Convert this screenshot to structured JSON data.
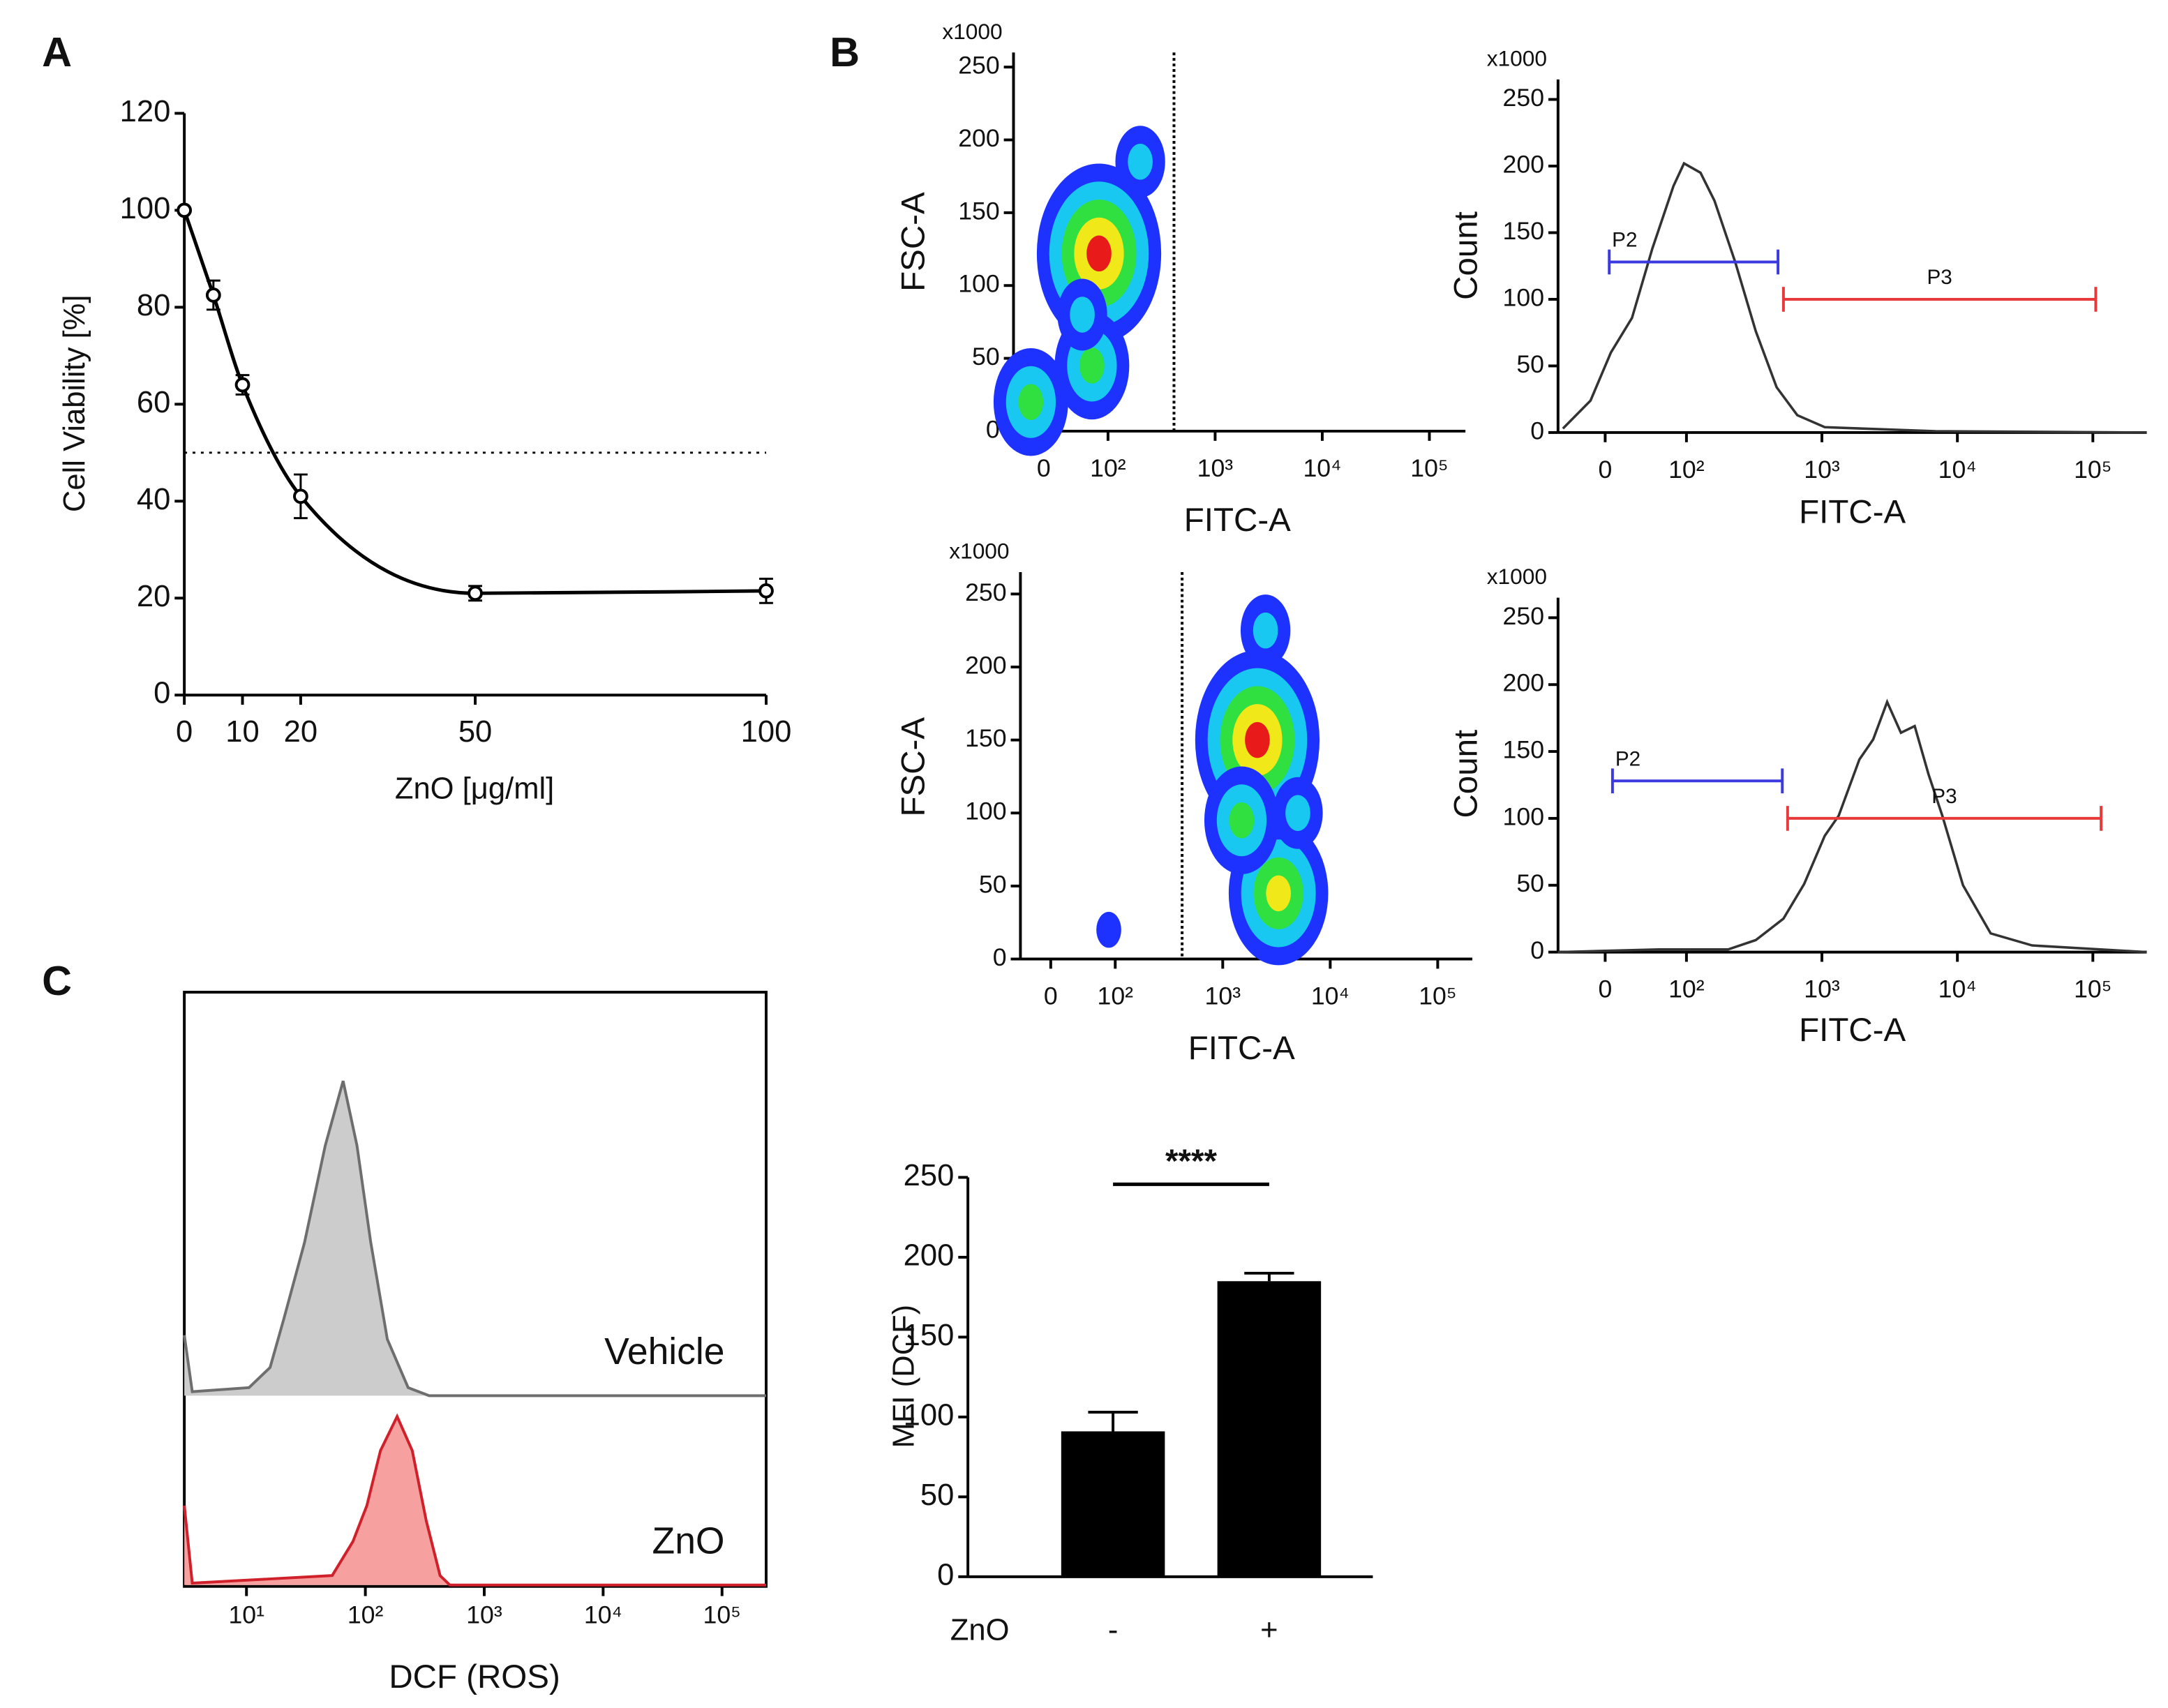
{
  "chart_data": [
    {
      "type": "line",
      "panel": "A",
      "markers": true,
      "color": "#000000",
      "x": [
        0,
        5,
        10,
        20,
        50,
        100
      ],
      "values": [
        100,
        82.5,
        64,
        41,
        21,
        21.5
      ],
      "errors": [
        0,
        3,
        2,
        4.5,
        1.5,
        2.5
      ],
      "reference": 50,
      "xlim": [
        0,
        100
      ],
      "xticks": [
        0,
        10,
        20,
        50,
        100
      ],
      "ylim": [
        0,
        120
      ],
      "yticks": [
        0,
        20,
        40,
        60,
        80,
        100,
        120
      ],
      "xlabel": "ZnO [μg/ml]",
      "ylabel": "Cell Viability [%]"
    },
    {
      "type": "density",
      "panel": "B",
      "xscale": "biexponential",
      "xlim": [
        -47,
        217000
      ],
      "xticks": [
        0,
        {
          "value": 100,
          "label": "10²"
        },
        {
          "value": 1000,
          "label": "10³"
        },
        {
          "value": 10000,
          "label": "10⁴"
        },
        {
          "value": 100000,
          "label": "10⁵"
        }
      ],
      "ylim": [
        0,
        260
      ],
      "yticks": [
        0,
        50,
        100,
        150,
        200,
        250
      ],
      "yunit_label": "x1000",
      "xlabel": "FITC-A",
      "ylabel": "FSC-A",
      "gate": 413,
      "density_colors": [
        "#1e32ff",
        "#18c8f0",
        "#30e040",
        "#f0e818",
        "#e81a1a"
      ],
      "clusters": [
        {
          "x": 86,
          "y": 122,
          "levels": 5
        },
        {
          "x": -20,
          "y": 20,
          "levels": 3
        },
        {
          "x": 75,
          "y": 45,
          "levels": 3
        },
        {
          "x": 200,
          "y": 185,
          "levels": 2
        },
        {
          "x": 60,
          "y": 80,
          "levels": 2
        }
      ]
    },
    {
      "type": "line",
      "xscale": "biexponential",
      "xlim": [
        -58,
        250000
      ],
      "color": "#333333",
      "x": [
        -52,
        -18,
        7,
        33,
        58,
        84,
        97,
        127,
        161,
        229,
        325,
        463,
        658,
        1050,
        6900,
        250000
      ],
      "values": [
        3,
        24,
        60,
        86,
        138,
        185,
        202,
        195,
        174,
        128,
        76,
        34,
        13,
        4,
        1,
        0
      ],
      "xticks": [
        0,
        {
          "value": 100,
          "label": "10²"
        },
        {
          "value": 1000,
          "label": "10³"
        },
        {
          "value": 10000,
          "label": "10⁴"
        },
        {
          "value": 100000,
          "label": "10⁵"
        }
      ],
      "ylim": [
        0,
        265
      ],
      "yticks": [
        0,
        50,
        100,
        150,
        200,
        250
      ],
      "yunit_label": "x1000",
      "xlabel": "FITC-A",
      "ylabel": "Count",
      "gates": [
        {
          "name": "P2",
          "from": 5,
          "to": 474,
          "y": 128,
          "color": "#3a3ae0"
        },
        {
          "name": "P3",
          "from": 520,
          "to": 105000,
          "y": 100,
          "color": "#e83a3a"
        }
      ]
    },
    {
      "type": "density",
      "xscale": "biexponential",
      "xlim": [
        -47,
        210000
      ],
      "xticks": [
        0,
        {
          "value": 100,
          "label": "10²"
        },
        {
          "value": 1000,
          "label": "10³"
        },
        {
          "value": 10000,
          "label": "10⁴"
        },
        {
          "value": 100000,
          "label": "10⁵"
        }
      ],
      "ylim": [
        0,
        265
      ],
      "yticks": [
        0,
        50,
        100,
        150,
        200,
        250
      ],
      "yunit_label": "x1000",
      "xlabel": "FITC-A",
      "ylabel": "FSC-A",
      "gate": 419,
      "density_colors": [
        "#1e32ff",
        "#18c8f0",
        "#30e040",
        "#f0e818",
        "#e81a1a"
      ],
      "clusters": [
        {
          "x": 2100,
          "y": 150,
          "levels": 5
        },
        {
          "x": 3300,
          "y": 45,
          "levels": 4
        },
        {
          "x": 2500,
          "y": 225,
          "levels": 2
        },
        {
          "x": 1500,
          "y": 95,
          "levels": 3
        },
        {
          "x": 5000,
          "y": 100,
          "levels": 2
        },
        {
          "x": 90,
          "y": 20,
          "levels": 1
        }
      ]
    },
    {
      "type": "line",
      "xscale": "biexponential",
      "xlim": [
        -58,
        250000
      ],
      "color": "#333333",
      "x": [
        -58,
        66,
        203,
        325,
        520,
        740,
        1050,
        1330,
        1890,
        2390,
        3030,
        3830,
        4840,
        6120,
        7740,
        11000,
        17600,
        35600,
        250000
      ],
      "values": [
        0,
        2,
        2,
        9,
        25,
        51,
        87,
        102,
        144,
        159,
        187,
        164,
        169,
        133,
        102,
        50,
        14,
        5,
        0
      ],
      "xticks": [
        0,
        {
          "value": 100,
          "label": "10²"
        },
        {
          "value": 1000,
          "label": "10³"
        },
        {
          "value": 10000,
          "label": "10⁴"
        },
        {
          "value": 100000,
          "label": "10⁵"
        }
      ],
      "ylim": [
        0,
        265
      ],
      "yticks": [
        0,
        50,
        100,
        150,
        200,
        250
      ],
      "yunit_label": "x1000",
      "xlabel": "FITC-A",
      "ylabel": "Count",
      "gates": [
        {
          "name": "P2",
          "from": 9,
          "to": 510,
          "y": 128,
          "color": "#3a3ae0"
        },
        {
          "name": "P3",
          "from": 558,
          "to": 115000,
          "y": 100,
          "color": "#e83a3a"
        }
      ]
    },
    {
      "type": "area",
      "panel": "C",
      "xscale": "log",
      "xlim": [
        3,
        235000
      ],
      "ylim": [
        0,
        100
      ],
      "xticks": [
        {
          "value": 10,
          "label": "10¹"
        },
        {
          "value": 100,
          "label": "10²"
        },
        {
          "value": 1000,
          "label": "10³"
        },
        {
          "value": 10000,
          "label": "10⁴"
        },
        {
          "value": 100000,
          "label": "10⁵"
        }
      ],
      "xlabel": "DCF (ROS)",
      "series": [
        {
          "name": "Vehicle",
          "color": "#6e6e6e",
          "fill": "#cccccc",
          "x": [
            3,
            3.5,
            10.5,
            15.8,
            20.6,
            30.8,
            46,
            65,
            85,
            111,
            153,
            229,
            344,
            235000
          ],
          "values": [
            15,
            1,
            2,
            7,
            19,
            38,
            62,
            78,
            62,
            38,
            14,
            2,
            0,
            0
          ]
        },
        {
          "name": "ZnO",
          "color": "#d0202a",
          "fill": "#f6a0a0",
          "x": [
            3,
            3.5,
            52.6,
            78.6,
            103,
            134,
            185,
            248,
            325,
            425,
            513,
            235000
          ],
          "values": [
            42,
            1,
            5,
            23,
            42,
            71,
            89,
            71,
            34,
            5,
            0,
            0
          ]
        }
      ]
    },
    {
      "type": "bar",
      "categories": [
        "-",
        "+"
      ],
      "values": [
        91,
        185
      ],
      "errors": [
        12,
        5
      ],
      "color": "#000000",
      "ylim": [
        0,
        250
      ],
      "yticks": [
        0,
        50,
        100,
        150,
        200,
        250
      ],
      "xlabel": "ZnO",
      "ylabel": "MFI (DCF)",
      "annotation": "****"
    }
  ]
}
